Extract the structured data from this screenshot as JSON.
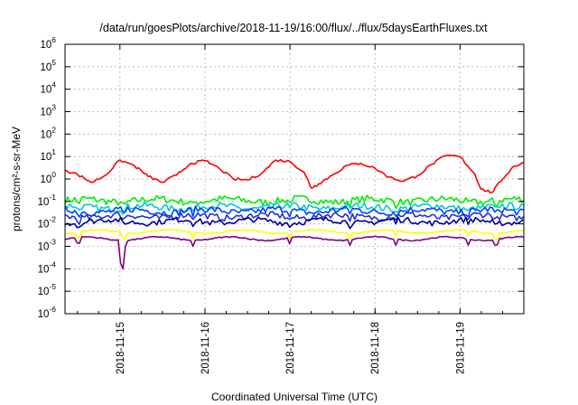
{
  "chart_data": {
    "type": "line",
    "title": "/data/run/goesPlots/archive/2018-11-19/16:00/flux/../flux/5daysEarthFluxes.txt",
    "xlabel": "Coordinated Universal Time (UTC)",
    "ylabel": "protons/cm²-s-sr-MeV",
    "yscale": "log",
    "ylim": [
      1e-06,
      1000000.0
    ],
    "xlim": [
      "2018-11-14T08:30",
      "2018-11-19T18:00"
    ],
    "grid": true,
    "legend": "none",
    "x_ticks": [
      "2018-11-15",
      "2018-11-16",
      "2018-11-17",
      "2018-11-18",
      "2018-11-19"
    ],
    "y_ticks": [
      {
        "base": "10",
        "exp": "6"
      },
      {
        "base": "10",
        "exp": "5"
      },
      {
        "base": "10",
        "exp": "4"
      },
      {
        "base": "10",
        "exp": "3"
      },
      {
        "base": "10",
        "exp": "2"
      },
      {
        "base": "10",
        "exp": "1"
      },
      {
        "base": "10",
        "exp": "0"
      },
      {
        "base": "10",
        "exp": "-1"
      },
      {
        "base": "10",
        "exp": "-2"
      },
      {
        "base": "10",
        "exp": "-3"
      },
      {
        "base": "10",
        "exp": "-4"
      },
      {
        "base": "10",
        "exp": "-5"
      },
      {
        "base": "10",
        "exp": "-6"
      }
    ],
    "series": [
      {
        "color": "#ff0000",
        "points": [
          [
            "2018-11-14T08:30",
            2.5
          ],
          [
            "2018-11-14T12:00",
            1.6
          ],
          [
            "2018-11-14T16:00",
            0.7
          ],
          [
            "2018-11-14T20:00",
            1.5
          ],
          [
            "2018-11-15T00:00",
            7.0
          ],
          [
            "2018-11-15T04:00",
            4.0
          ],
          [
            "2018-11-15T08:00",
            1.3
          ],
          [
            "2018-11-15T12:00",
            0.7
          ],
          [
            "2018-11-15T16:00",
            1.5
          ],
          [
            "2018-11-15T20:00",
            5.0
          ],
          [
            "2018-11-16T00:00",
            6.5
          ],
          [
            "2018-11-16T04:00",
            3.0
          ],
          [
            "2018-11-16T08:00",
            1.0
          ],
          [
            "2018-11-16T12:00",
            0.9
          ],
          [
            "2018-11-16T16:00",
            1.8
          ],
          [
            "2018-11-16T20:00",
            7.0
          ],
          [
            "2018-11-17T00:00",
            6.0
          ],
          [
            "2018-11-17T04:00",
            2.0
          ],
          [
            "2018-11-17T06:00",
            0.4
          ],
          [
            "2018-11-17T08:00",
            0.6
          ],
          [
            "2018-11-17T12:00",
            1.5
          ],
          [
            "2018-11-17T16:00",
            4.0
          ],
          [
            "2018-11-17T20:00",
            5.0
          ],
          [
            "2018-11-18T00:00",
            3.0
          ],
          [
            "2018-11-18T04:00",
            1.2
          ],
          [
            "2018-11-18T08:00",
            0.8
          ],
          [
            "2018-11-18T12:00",
            1.4
          ],
          [
            "2018-11-18T16:00",
            4.5
          ],
          [
            "2018-11-18T20:00",
            11.0
          ],
          [
            "2018-11-19T00:00",
            10.0
          ],
          [
            "2018-11-19T04:00",
            1.8
          ],
          [
            "2018-11-19T06:00",
            0.35
          ],
          [
            "2018-11-19T09:00",
            0.25
          ],
          [
            "2018-11-19T12:00",
            1.0
          ],
          [
            "2018-11-19T15:00",
            3.5
          ],
          [
            "2018-11-19T18:00",
            5.5
          ]
        ]
      },
      {
        "color": "#00ee00",
        "base": 0.11,
        "amp": 0.32
      },
      {
        "color": "#00c8d8",
        "base": 0.055,
        "amp": 0.3
      },
      {
        "color": "#0044ff",
        "base": 0.038,
        "amp": 0.3
      },
      {
        "color": "#2233cc",
        "base": 0.022,
        "amp": 0.28
      },
      {
        "color": "#000090",
        "base": 0.013,
        "amp": 0.25
      },
      {
        "color": "#ffff00",
        "base": 0.0045,
        "amp": 0.06
      },
      {
        "color": "#800080",
        "base": 0.0022,
        "amp": 0.05
      }
    ]
  }
}
